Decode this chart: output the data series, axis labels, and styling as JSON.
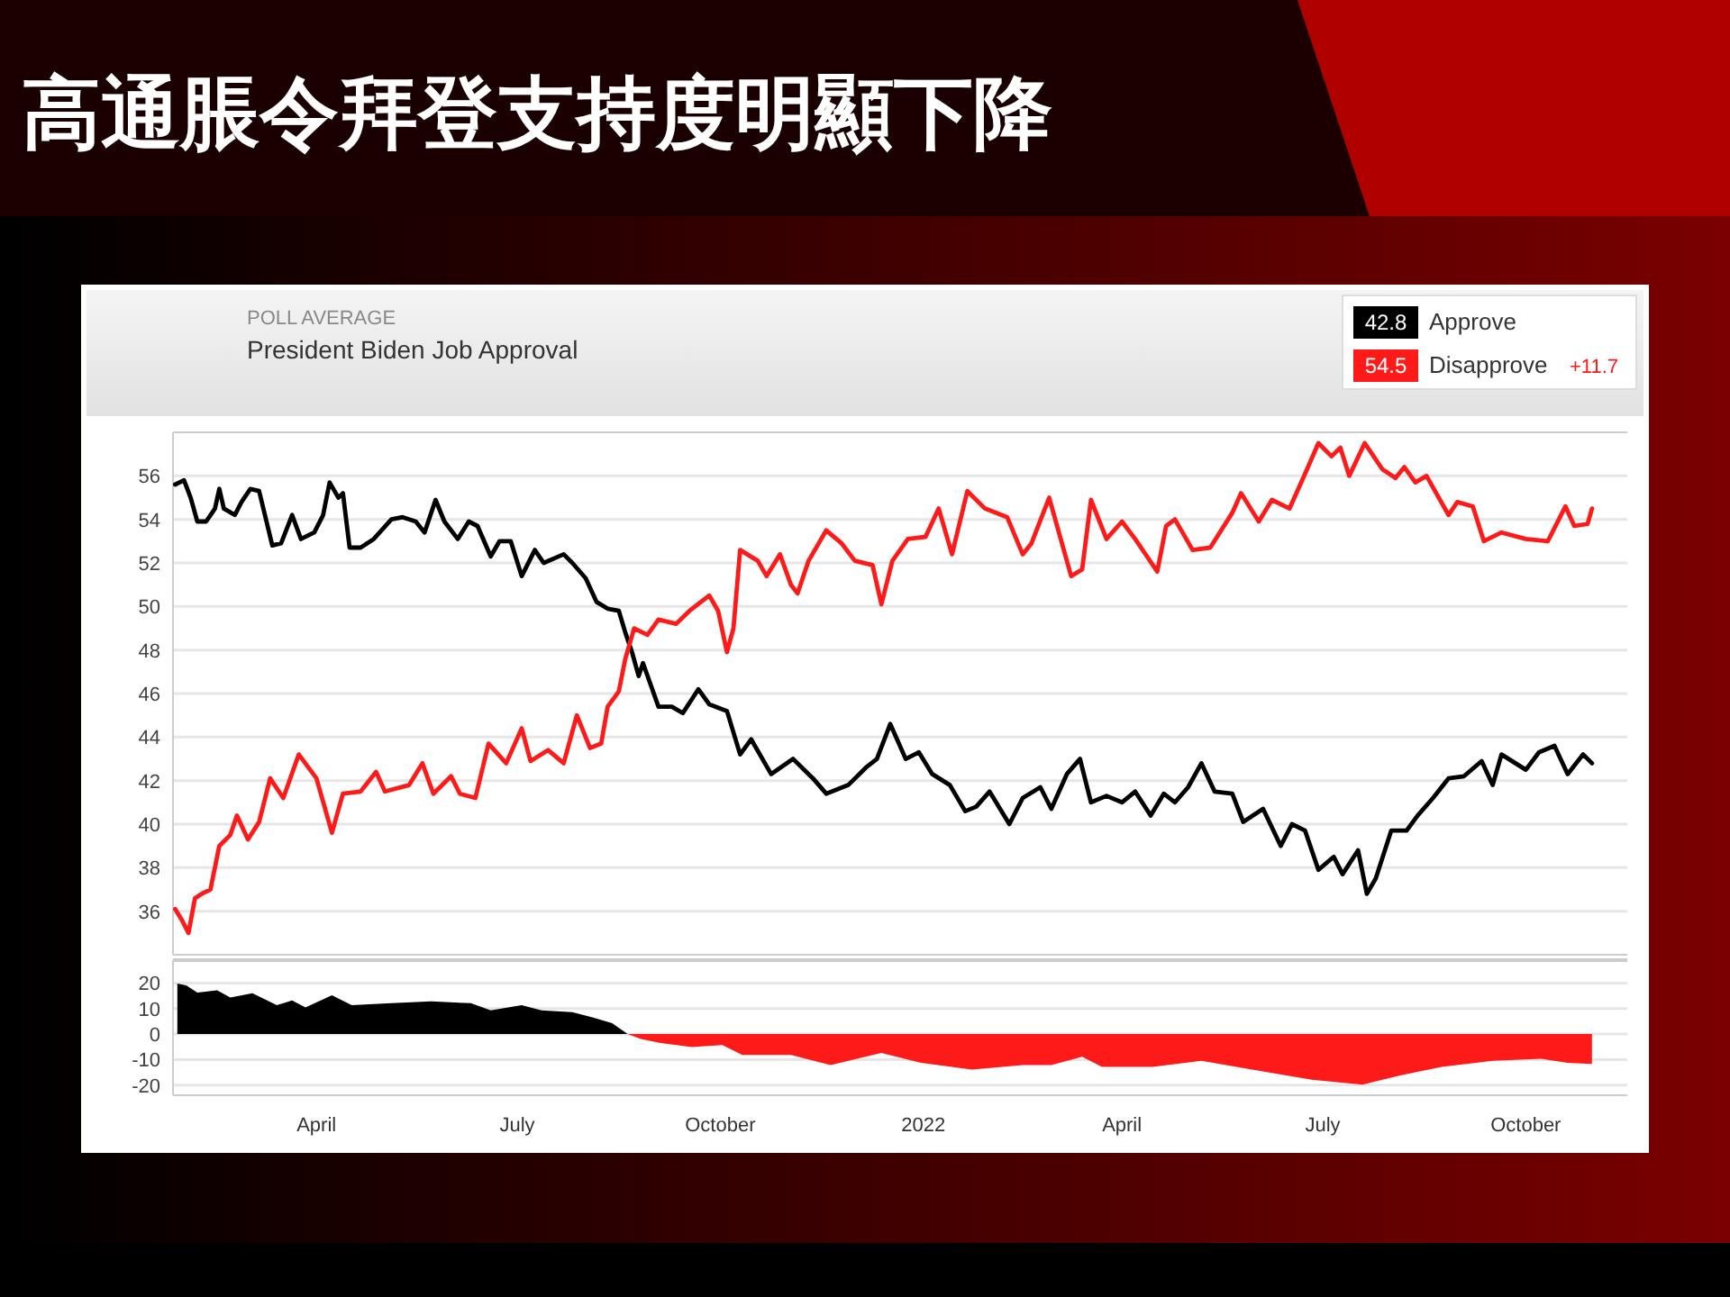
{
  "chart_data": [
    {
      "type": "line",
      "title": "高通脹令拜登支持度明顯下降",
      "subtitle": "President Biden Job Approval",
      "annotations": [
        "POLL AVERAGE",
        "42.8",
        "54.5",
        "+11.7"
      ],
      "xlim": [
        "2021-01-26",
        "2022-11-16"
      ],
      "ylim": [
        34,
        58
      ],
      "yticks": [
        36,
        38,
        40,
        42,
        44,
        46,
        48,
        50,
        52,
        54,
        56
      ],
      "grid": "y",
      "legend": "top right",
      "tick_labels": "y",
      "line_style": "solid",
      "series": [
        {
          "name": "Approve",
          "color": "#000000",
          "x": [
            "2021-01-27",
            "2021-01-31",
            "2021-02-03",
            "2021-02-06",
            "2021-02-10",
            "2021-02-14",
            "2021-02-16",
            "2021-02-18",
            "2021-02-23",
            "2021-02-26",
            "2021-03-02",
            "2021-03-06",
            "2021-03-12",
            "2021-03-16",
            "2021-03-21",
            "2021-03-25",
            "2021-03-31",
            "2021-04-04",
            "2021-04-07",
            "2021-04-11",
            "2021-04-13",
            "2021-04-16",
            "2021-04-21",
            "2021-04-27",
            "2021-05-05",
            "2021-05-10",
            "2021-05-16",
            "2021-05-20",
            "2021-05-25",
            "2021-05-29",
            "2021-06-04",
            "2021-06-09",
            "2021-06-13",
            "2021-06-19",
            "2021-06-23",
            "2021-06-28",
            "2021-07-03",
            "2021-07-09",
            "2021-07-13",
            "2021-07-22",
            "2021-07-26",
            "2021-08-01",
            "2021-08-06",
            "2021-08-11",
            "2021-08-16",
            "2021-08-19",
            "2021-08-22",
            "2021-08-25",
            "2021-08-27",
            "2021-09-03",
            "2021-09-09",
            "2021-09-14",
            "2021-09-21",
            "2021-09-26",
            "2021-10-04",
            "2021-10-10",
            "2021-10-15",
            "2021-10-24",
            "2021-11-03",
            "2021-11-12",
            "2021-11-18",
            "2021-11-28",
            "2021-12-06",
            "2021-12-11",
            "2021-12-17",
            "2021-12-24",
            "2021-12-30",
            "2022-01-05",
            "2022-01-13",
            "2022-01-20",
            "2022-01-25",
            "2022-01-31",
            "2022-02-09",
            "2022-02-15",
            "2022-02-23",
            "2022-02-28",
            "2022-03-07",
            "2022-03-13",
            "2022-03-18",
            "2022-03-25",
            "2022-04-01",
            "2022-04-07",
            "2022-04-14",
            "2022-04-20",
            "2022-04-25",
            "2022-05-01",
            "2022-05-07",
            "2022-05-13",
            "2022-05-21",
            "2022-05-26",
            "2022-06-04",
            "2022-06-12",
            "2022-06-17",
            "2022-06-23",
            "2022-06-29",
            "2022-07-06",
            "2022-07-10",
            "2022-07-17",
            "2022-07-21",
            "2022-07-25",
            "2022-08-01",
            "2022-08-08",
            "2022-08-13",
            "2022-08-20",
            "2022-08-27",
            "2022-09-03",
            "2022-09-11",
            "2022-09-16",
            "2022-09-20",
            "2022-10-01",
            "2022-10-07",
            "2022-10-14",
            "2022-10-20",
            "2022-10-27",
            "2022-10-31"
          ],
          "values": [
            55.6,
            55.8,
            55.0,
            53.9,
            53.9,
            54.5,
            55.4,
            54.5,
            54.2,
            54.8,
            55.4,
            55.3,
            52.8,
            52.9,
            54.2,
            53.1,
            53.4,
            54.2,
            55.7,
            55.0,
            55.2,
            52.7,
            52.7,
            53.1,
            54.0,
            54.1,
            53.9,
            53.4,
            54.9,
            53.9,
            53.1,
            53.9,
            53.7,
            52.3,
            53.0,
            53.0,
            51.4,
            52.6,
            52.0,
            52.4,
            52.0,
            51.3,
            50.2,
            49.9,
            49.8,
            48.8,
            47.9,
            46.8,
            47.4,
            45.4,
            45.4,
            45.1,
            46.2,
            45.5,
            45.2,
            43.2,
            43.9,
            42.3,
            43.0,
            42.1,
            41.4,
            41.8,
            42.6,
            43.0,
            44.6,
            43.0,
            43.3,
            42.3,
            41.8,
            40.6,
            40.8,
            41.5,
            40.0,
            41.2,
            41.7,
            40.7,
            42.3,
            43.0,
            41.0,
            41.3,
            41.0,
            41.5,
            40.4,
            41.4,
            41.0,
            41.7,
            42.8,
            41.5,
            41.4,
            40.1,
            40.7,
            39.0,
            40.0,
            39.7,
            37.9,
            38.5,
            37.7,
            38.8,
            36.8,
            37.5,
            39.7,
            39.7,
            40.4,
            41.2,
            42.1,
            42.2,
            42.9,
            41.8,
            43.2,
            42.5,
            43.3,
            43.6,
            42.3,
            43.2,
            42.8
          ]
        },
        {
          "name": "Disapprove",
          "color": "#ff1a1a",
          "x": [
            "2021-01-27",
            "2021-01-30",
            "2021-02-02",
            "2021-02-05",
            "2021-02-08",
            "2021-02-12",
            "2021-02-16",
            "2021-02-21",
            "2021-02-24",
            "2021-03-01",
            "2021-03-06",
            "2021-03-11",
            "2021-03-17",
            "2021-03-24",
            "2021-04-01",
            "2021-04-08",
            "2021-04-13",
            "2021-04-21",
            "2021-04-28",
            "2021-05-02",
            "2021-05-13",
            "2021-05-19",
            "2021-05-24",
            "2021-06-01",
            "2021-06-05",
            "2021-06-12",
            "2021-06-18",
            "2021-06-26",
            "2021-07-03",
            "2021-07-07",
            "2021-07-15",
            "2021-07-22",
            "2021-07-28",
            "2021-08-03",
            "2021-08-08",
            "2021-08-11",
            "2021-08-16",
            "2021-08-19",
            "2021-08-23",
            "2021-08-29",
            "2021-09-03",
            "2021-09-11",
            "2021-09-17",
            "2021-09-26",
            "2021-09-30",
            "2021-10-04",
            "2021-10-07",
            "2021-10-10",
            "2021-10-18",
            "2021-10-22",
            "2021-10-28",
            "2021-11-02",
            "2021-11-05",
            "2021-11-10",
            "2021-11-18",
            "2021-11-25",
            "2021-12-01",
            "2021-12-09",
            "2021-12-13",
            "2021-12-18",
            "2021-12-25",
            "2022-01-02",
            "2022-01-08",
            "2022-01-14",
            "2022-01-21",
            "2022-01-29",
            "2022-02-08",
            "2022-02-15",
            "2022-02-19",
            "2022-02-27",
            "2022-03-09",
            "2022-03-14",
            "2022-03-18",
            "2022-03-25",
            "2022-04-01",
            "2022-04-07",
            "2022-04-17",
            "2022-04-21",
            "2022-04-25",
            "2022-05-03",
            "2022-05-11",
            "2022-05-21",
            "2022-05-25",
            "2022-06-02",
            "2022-06-08",
            "2022-06-16",
            "2022-06-23",
            "2022-06-29",
            "2022-07-05",
            "2022-07-09",
            "2022-07-13",
            "2022-07-20",
            "2022-07-28",
            "2022-08-03",
            "2022-08-07",
            "2022-08-12",
            "2022-08-17",
            "2022-08-27",
            "2022-08-31",
            "2022-09-07",
            "2022-09-12",
            "2022-09-20",
            "2022-10-01",
            "2022-10-11",
            "2022-10-19",
            "2022-10-23",
            "2022-10-29",
            "2022-10-31"
          ],
          "values": [
            36.1,
            35.6,
            35.0,
            36.6,
            36.8,
            37.0,
            39.0,
            39.5,
            40.4,
            39.3,
            40.1,
            42.1,
            41.2,
            43.2,
            42.1,
            39.6,
            41.4,
            41.5,
            42.4,
            41.5,
            41.8,
            42.8,
            41.4,
            42.2,
            41.4,
            41.2,
            43.7,
            42.8,
            44.4,
            42.9,
            43.4,
            42.8,
            45.0,
            43.5,
            43.7,
            45.4,
            46.1,
            47.6,
            49.0,
            48.7,
            49.4,
            49.2,
            49.8,
            50.5,
            49.8,
            47.9,
            49.0,
            52.6,
            52.1,
            51.4,
            52.4,
            51.0,
            50.6,
            52.1,
            53.5,
            52.9,
            52.1,
            51.9,
            50.1,
            52.1,
            53.1,
            53.2,
            54.5,
            52.4,
            55.3,
            54.5,
            54.1,
            52.4,
            52.9,
            55.0,
            51.4,
            51.7,
            54.9,
            53.1,
            53.9,
            53.1,
            51.6,
            53.7,
            54.0,
            52.6,
            52.7,
            54.3,
            55.2,
            53.9,
            54.9,
            54.5,
            56.1,
            57.5,
            56.9,
            57.3,
            56.0,
            57.5,
            56.3,
            55.9,
            56.4,
            55.7,
            56.0,
            54.2,
            54.8,
            54.6,
            53.0,
            53.4,
            53.1,
            53.0,
            54.6,
            53.7,
            53.8,
            54.5
          ]
        }
      ]
    },
    {
      "type": "area",
      "xlim": [
        "2021-01-26",
        "2022-11-16"
      ],
      "ylim": [
        -24,
        29
      ],
      "yticks": [
        -20,
        -10,
        0,
        10,
        20
      ],
      "xticks": [
        {
          "value": "2021-04-01",
          "label": "April"
        },
        {
          "value": "2021-07-01",
          "label": "July"
        },
        {
          "value": "2021-10-01",
          "label": "October"
        },
        {
          "value": "2022-01-01",
          "label": "2022"
        },
        {
          "value": "2022-04-01",
          "label": "April"
        },
        {
          "value": "2022-07-01",
          "label": "July"
        },
        {
          "value": "2022-10-01",
          "label": "October"
        }
      ],
      "grid": "y",
      "series": [
        {
          "color": "#000000",
          "x": [
            "2021-01-28",
            "2021-02-01",
            "2021-02-06",
            "2021-02-15",
            "2021-02-21",
            "2021-03-03",
            "2021-03-14",
            "2021-03-21",
            "2021-03-27",
            "2021-04-08",
            "2021-04-17",
            "2021-05-05",
            "2021-05-23",
            "2021-06-10",
            "2021-06-19",
            "2021-07-03",
            "2021-07-12",
            "2021-07-26",
            "2021-08-04",
            "2021-08-13",
            "2021-08-20"
          ],
          "values": [
            19.8,
            19.1,
            16.3,
            17.1,
            14.4,
            16.0,
            11.3,
            13.2,
            10.5,
            15.2,
            11.3,
            12.1,
            12.8,
            12.1,
            9.3,
            11.3,
            9.3,
            8.6,
            6.6,
            4.3,
            0
          ]
        },
        {
          "color": "#ff1a1a",
          "x": [
            "2021-08-20",
            "2021-08-26",
            "2021-09-04",
            "2021-09-18",
            "2021-10-02",
            "2021-10-11",
            "2021-11-02",
            "2021-11-20",
            "2021-12-13",
            "2021-12-31",
            "2022-01-23",
            "2022-02-15",
            "2022-02-28",
            "2022-03-14",
            "2022-03-23",
            "2022-04-15",
            "2022-05-07",
            "2022-05-30",
            "2022-06-26",
            "2022-07-19",
            "2022-08-06",
            "2022-08-24",
            "2022-09-16",
            "2022-10-08",
            "2022-10-20",
            "2022-10-31"
          ],
          "values": [
            0,
            -1.9,
            -3.5,
            -5.1,
            -4.3,
            -8.2,
            -8.2,
            -12.1,
            -7.4,
            -11.3,
            -14.0,
            -12.1,
            -12.1,
            -8.9,
            -12.8,
            -12.8,
            -10.5,
            -14.0,
            -17.9,
            -19.8,
            -16.0,
            -12.8,
            -10.5,
            -9.7,
            -11.3,
            -11.7
          ]
        }
      ]
    }
  ]
}
